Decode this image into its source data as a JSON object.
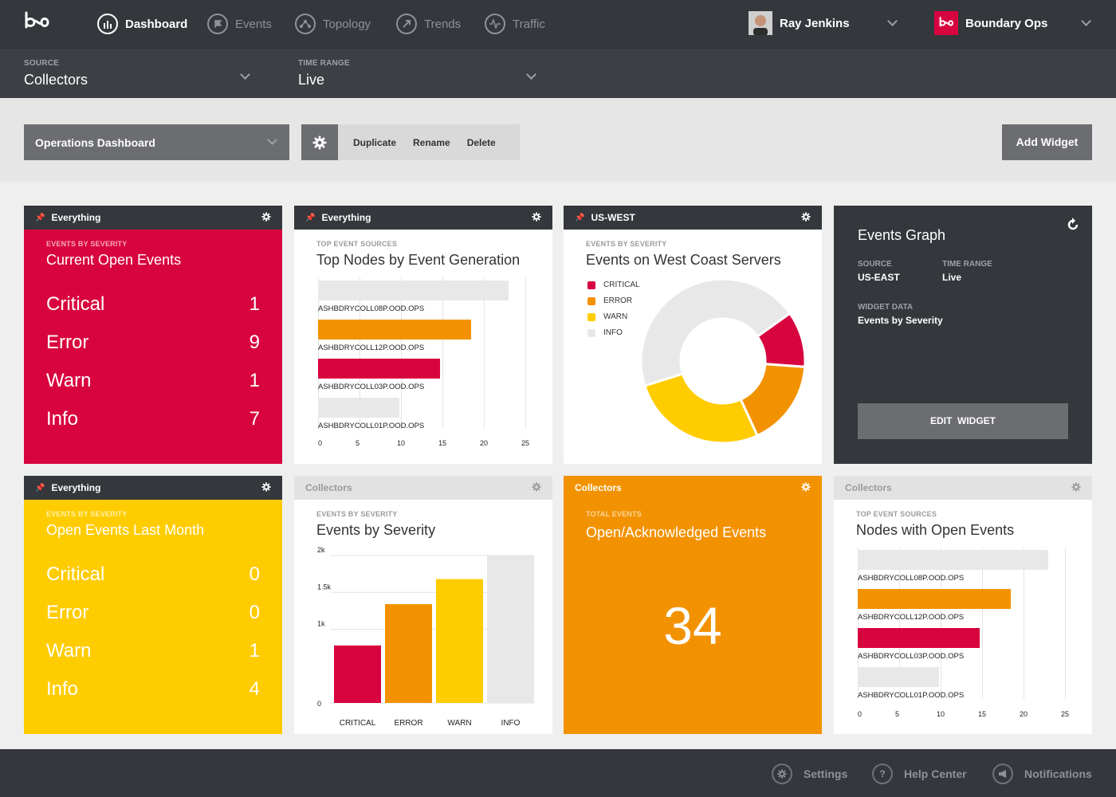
{
  "nav": {
    "items": [
      {
        "label": "Dashboard",
        "active": true,
        "icon": "bar-chart-icon"
      },
      {
        "label": "Events",
        "active": false,
        "icon": "flag-icon"
      },
      {
        "label": "Topology",
        "active": false,
        "icon": "topology-icon"
      },
      {
        "label": "Trends",
        "active": false,
        "icon": "trend-arrow-icon"
      },
      {
        "label": "Traffic",
        "active": false,
        "icon": "pulse-icon"
      }
    ],
    "user_name": "Ray Jenkins",
    "org_name": "Boundary Ops"
  },
  "filters": {
    "source_label": "SOURCE",
    "source_value": "Collectors",
    "time_label": "TIME RANGE",
    "time_value": "Live"
  },
  "toolbar": {
    "dashboard_name": "Operations Dashboard",
    "duplicate": "Duplicate",
    "rename": "Rename",
    "delete": "Delete",
    "add_widget": "Add Widget"
  },
  "colors": {
    "critical": "#d8043f",
    "error": "#f39200",
    "warn": "#ffcc00",
    "info": "#e8e8e8",
    "dark": "#34373c"
  },
  "widgets": {
    "w1": {
      "header": "Everything",
      "subtitle": "EVENTS BY SEVERITY",
      "title": "Current Open Events",
      "rows": [
        {
          "label": "Critical",
          "value": "1"
        },
        {
          "label": "Error",
          "value": "9"
        },
        {
          "label": "Warn",
          "value": "1"
        },
        {
          "label": "Info",
          "value": "7"
        }
      ]
    },
    "w2": {
      "header": "Everything",
      "subtitle": "TOP EVENT SOURCES",
      "title": "Top Nodes by Event Generation"
    },
    "w3": {
      "header": "US-WEST",
      "subtitle": "EVENTS BY SEVERITY",
      "title": "Events on West Coast Servers",
      "legend": [
        "CRITICAL",
        "ERROR",
        "WARN",
        "INFO"
      ]
    },
    "w4": {
      "title": "Events Graph",
      "source_label": "SOURCE",
      "source_value": "US-EAST",
      "time_label": "TIME RANGE",
      "time_value": "Live",
      "data_label": "WIDGET DATA",
      "data_value": "Events by Severity",
      "button": "EDIT  WIDGET"
    },
    "w5": {
      "header": "Everything",
      "subtitle": "EVENTS BY SEVERITY",
      "title": "Open Events Last Month",
      "rows": [
        {
          "label": "Critical",
          "value": "0"
        },
        {
          "label": "Error",
          "value": "0"
        },
        {
          "label": "Warn",
          "value": "1"
        },
        {
          "label": "Info",
          "value": "4"
        }
      ]
    },
    "w6": {
      "header": "Collectors",
      "subtitle": "EVENTS BY SEVERITY",
      "title": "Events by Severity"
    },
    "w7": {
      "header": "Collectors",
      "subtitle": "TOTAL EVENTS",
      "title": "Open/Acknowledged Events",
      "value": "34"
    },
    "w8": {
      "header": "Collectors",
      "subtitle": "TOP EVENT SOURCES",
      "title": "Nodes with Open Events"
    }
  },
  "footer": {
    "settings": "Settings",
    "help": "Help Center",
    "notifications": "Notifications"
  },
  "chart_data": [
    {
      "type": "bar",
      "orientation": "horizontal",
      "categories": [
        "ASHBDRYCOLL08P.OOD.OPS",
        "ASHBDRYCOLL12P.OOD.OPS",
        "ASHBDRYCOLL03P.OOD.OPS",
        "ASHBDRYCOLL01P.OOD.OPS"
      ],
      "values": [
        23,
        18.5,
        14.7,
        9.8
      ],
      "colors": [
        "#e8e8e8",
        "#f39200",
        "#d8043f",
        "#e8e8e8"
      ],
      "xticks": [
        "0",
        "5",
        "10",
        "15",
        "20",
        "25"
      ],
      "xlim": [
        0,
        25
      ]
    },
    {
      "type": "pie",
      "style": "donut",
      "labels": [
        "CRITICAL",
        "ERROR",
        "WARN",
        "INFO"
      ],
      "values": [
        11,
        17,
        27,
        45
      ],
      "colors": [
        "#d8043f",
        "#f39200",
        "#ffcc00",
        "#e8e8e8"
      ]
    },
    {
      "type": "bar",
      "categories": [
        "CRITICAL",
        "ERROR",
        "WARN",
        "INFO"
      ],
      "values": [
        780,
        1340,
        1680,
        2000
      ],
      "colors": [
        "#d8043f",
        "#f39200",
        "#ffcc00",
        "#e8e8e8"
      ],
      "yticks": [
        "0",
        "1k",
        "1.5k",
        "2k"
      ],
      "ytick_values": [
        0,
        1000,
        1500,
        2000
      ],
      "ylim": [
        0,
        2000
      ]
    },
    {
      "type": "bar",
      "orientation": "horizontal",
      "categories": [
        "ASHBDRYCOLL08P.OOD.OPS",
        "ASHBDRYCOLL12P.OOD.OPS",
        "ASHBDRYCOLL03P.OOD.OPS",
        "ASHBDRYCOLL01P.OOD.OPS"
      ],
      "values": [
        23,
        18.5,
        14.7,
        9.8
      ],
      "colors": [
        "#e8e8e8",
        "#f39200",
        "#d8043f",
        "#e8e8e8"
      ],
      "xticks": [
        "0",
        "5",
        "10",
        "15",
        "20",
        "25"
      ],
      "xlim": [
        0,
        25
      ]
    }
  ]
}
